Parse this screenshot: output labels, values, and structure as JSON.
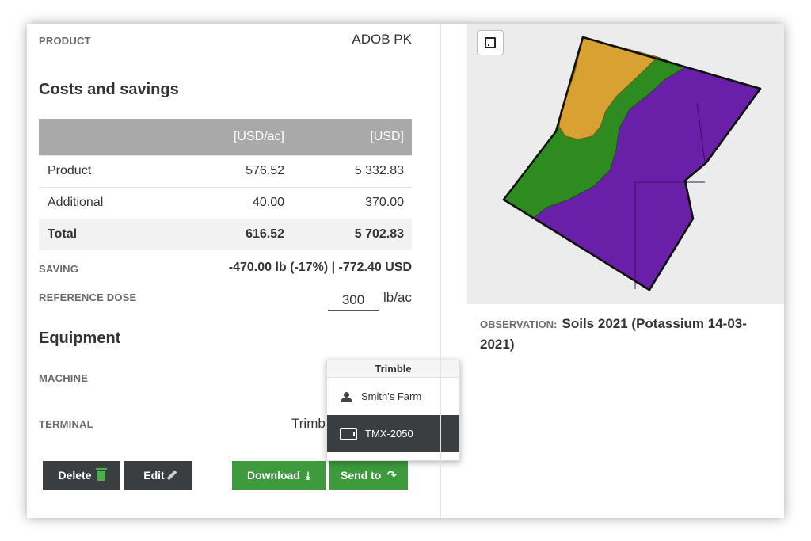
{
  "product": {
    "label": "PRODUCT",
    "value": "ADOB PK"
  },
  "costs": {
    "title": "Costs and savings",
    "headers": [
      "",
      "[USD/ac]",
      "[USD]"
    ],
    "rows": [
      {
        "name": "Product",
        "per_ac": "576.52",
        "total": "5 332.83"
      },
      {
        "name": "Additional",
        "per_ac": "40.00",
        "total": "370.00"
      },
      {
        "name": "Total",
        "per_ac": "616.52",
        "total": "5 702.83"
      }
    ]
  },
  "saving": {
    "label": "SAVING",
    "value": "-470.00 lb (-17%)  | -772.40 USD"
  },
  "reference_dose": {
    "label": "REFERENCE DOSE",
    "value": "300",
    "unit": "lb/ac"
  },
  "equipment": {
    "title": "Equipment",
    "machine_label": "MACHINE",
    "terminal_label": "TERMINAL",
    "terminal_value": "Trimb"
  },
  "buttons": {
    "delete": "Delete",
    "edit": "Edit",
    "download": "Download",
    "send_to": "Send to"
  },
  "dropdown": {
    "header": "Trimble",
    "items": [
      {
        "label": "Smith's Farm",
        "icon": "users-icon"
      },
      {
        "label": "TMX-2050",
        "icon": "tablet-icon"
      }
    ]
  },
  "observation": {
    "label": "OBSERVATION:",
    "value": "Soils 2021 (Potassium 14-03-2021)"
  },
  "colors": {
    "orange": "#d9a032",
    "green": "#2e8b1f",
    "purple": "#6a1fa8",
    "dark": "#3a3e41",
    "button_green": "#3d9a3d"
  }
}
